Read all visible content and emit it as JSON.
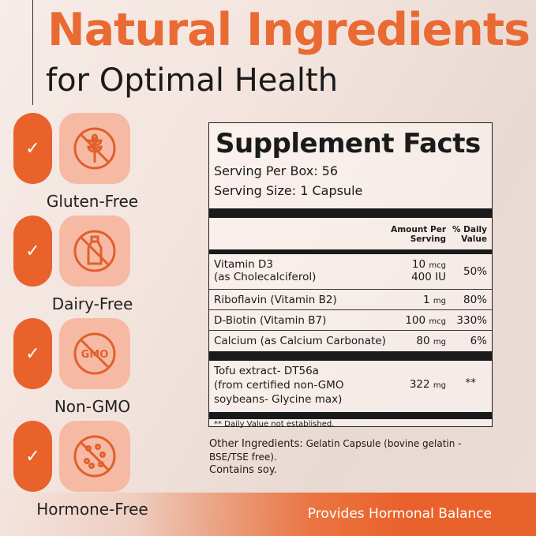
{
  "header": {
    "title": "Natural Ingredients",
    "subtitle": "for Optimal Health"
  },
  "features": [
    {
      "label": "Gluten-Free",
      "icon": "no-wheat-icon"
    },
    {
      "label": "Dairy-Free",
      "icon": "no-milk-bottle-icon"
    },
    {
      "label": "Non-GMO",
      "icon": "no-gmo-icon",
      "icon_text": "GMO"
    },
    {
      "label": "Hormone-Free",
      "icon": "no-hormone-icon"
    }
  ],
  "check_glyph": "✓",
  "facts": {
    "title": "Supplement Facts",
    "serving_per_box": "Serving Per Box: 56",
    "serving_size": "Serving Size: 1 Capsule",
    "col_amount": [
      "Amount Per",
      "Serving"
    ],
    "col_dv": [
      "% Daily",
      "Value"
    ],
    "rows": [
      {
        "name": "Vitamin D3",
        "name2": "(as Cholecalciferol)",
        "amount": "10",
        "unit": "mcg",
        "amount2": "400 IU",
        "dv": "50%"
      },
      {
        "name": "Riboflavin (Vitamin B2)",
        "amount": "1",
        "unit": "mg",
        "dv": "80%"
      },
      {
        "name": "D-Biotin (Vitamin B7)",
        "amount": "100",
        "unit": "mcg",
        "dv": "330%"
      },
      {
        "name": "Calcium (as Calcium Carbonate)",
        "amount": "80",
        "unit": "mg",
        "dv": "6%"
      },
      {
        "name": "Tofu extract- DT56a",
        "name2": "(from certified non-GMO",
        "name3": "soybeans- Glycine max)",
        "amount": "322",
        "unit": "mg",
        "dv": "**"
      }
    ],
    "footnote": "** Daily Value not established."
  },
  "other": {
    "label": "Other Ingredients:",
    "text": " Gelatin Capsule (bovine gelatin - BSE/TSE free).",
    "contains": "Contains soy."
  },
  "banner": {
    "text": "Provides Hormonal Balance"
  },
  "colors": {
    "accent": "#e9622b",
    "icon_bg": "#f6b9a4"
  }
}
